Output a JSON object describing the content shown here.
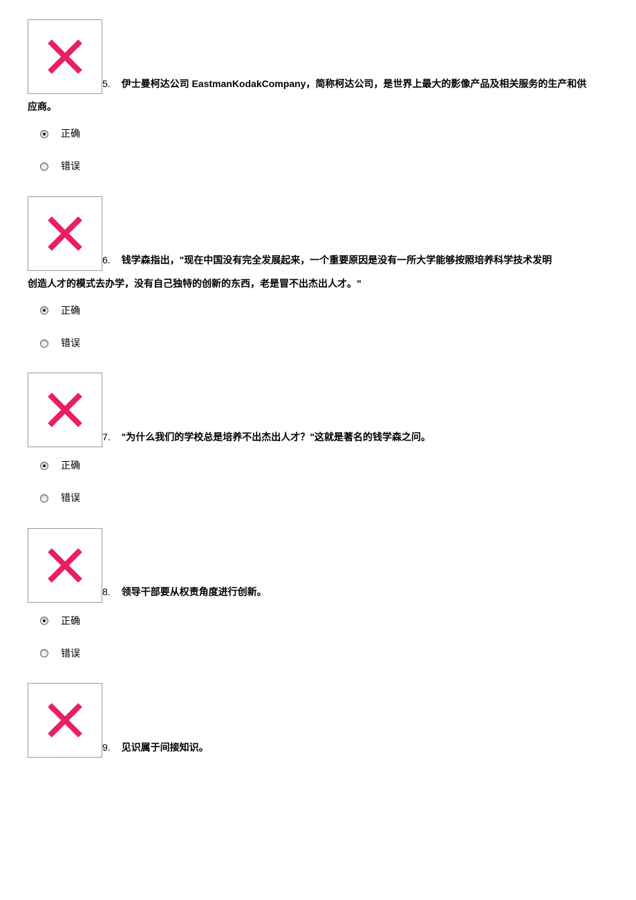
{
  "colors": {
    "x_stroke": "#e91e63",
    "box_border": "#999999",
    "background": "#ffffff",
    "text": "#000000"
  },
  "x_icon": {
    "stroke_width": 8,
    "size": 56
  },
  "options_labels": {
    "correct": "正确",
    "wrong": "错误"
  },
  "questions": [
    {
      "number": "5.",
      "text_line1_after_box": "伊士曼柯达公司 EastmanKodakCompany，简称柯达公司，是世界上最大的影像产品及相关服务的生产和供",
      "text_line2": "应商。",
      "selected": "correct",
      "show_x_before": true
    },
    {
      "number": "6.",
      "text_line1_after_box": "钱学森指出，\"现在中国没有完全发展起来，一个重要原因是没有一所大学能够按照培养科学技术发明",
      "text_line2": "创造人才的模式去办学，没有自己独特的创新的东西，老是冒不出杰出人才。\"",
      "selected": "correct",
      "show_x_before": true
    },
    {
      "number": "7.",
      "text_line1_after_box": "\"为什么我们的学校总是培养不出杰出人才？\"这就是著名的钱学森之问。",
      "text_line2": "",
      "selected": "correct",
      "show_x_before": true
    },
    {
      "number": "8.",
      "text_line1_after_box": "领导干部要从权责角度进行创新。",
      "text_line2": "",
      "selected": "correct",
      "show_x_before": true
    },
    {
      "number": "9.",
      "text_line1_after_box": "见识属于间接知识。",
      "text_line2": "",
      "selected": null,
      "show_x_before": true,
      "no_options": true
    }
  ]
}
